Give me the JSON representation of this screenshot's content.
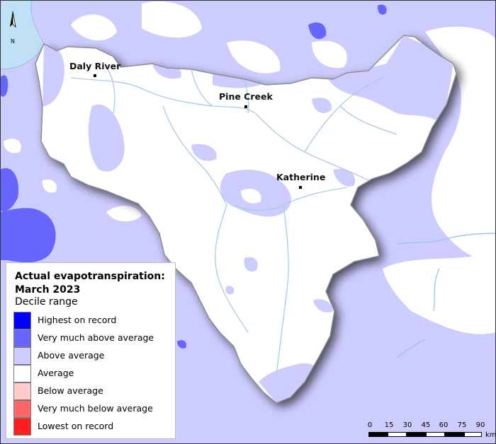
{
  "map": {
    "towns": [
      {
        "name": "Daly River"
      },
      {
        "name": "Pine Creek"
      },
      {
        "name": "Katherine"
      }
    ],
    "north_label": "N"
  },
  "legend": {
    "title_line1": "Actual evapotranspiration:",
    "title_line2": "March 2023",
    "subtitle": "Decile range",
    "items": [
      {
        "label": "Highest on record",
        "color": "#0000ff"
      },
      {
        "label": "Very much above average",
        "color": "#6666ff"
      },
      {
        "label": "Above average",
        "color": "#ccccff"
      },
      {
        "label": "Average",
        "color": "#ffffff"
      },
      {
        "label": "Below average",
        "color": "#ffcccc"
      },
      {
        "label": "Very much below average",
        "color": "#ff6666"
      },
      {
        "label": "Lowest on record",
        "color": "#ff1f1f"
      }
    ]
  },
  "scalebar": {
    "ticks": [
      "0",
      "15",
      "30",
      "45",
      "60",
      "75",
      "90"
    ],
    "unit": "km"
  },
  "colors": {
    "above_average": "#ccccff",
    "very_much_above_average": "#6666ff",
    "highest_on_record": "#0000ff",
    "sea": "#bfe0f5",
    "river": "#9ec9e2"
  }
}
